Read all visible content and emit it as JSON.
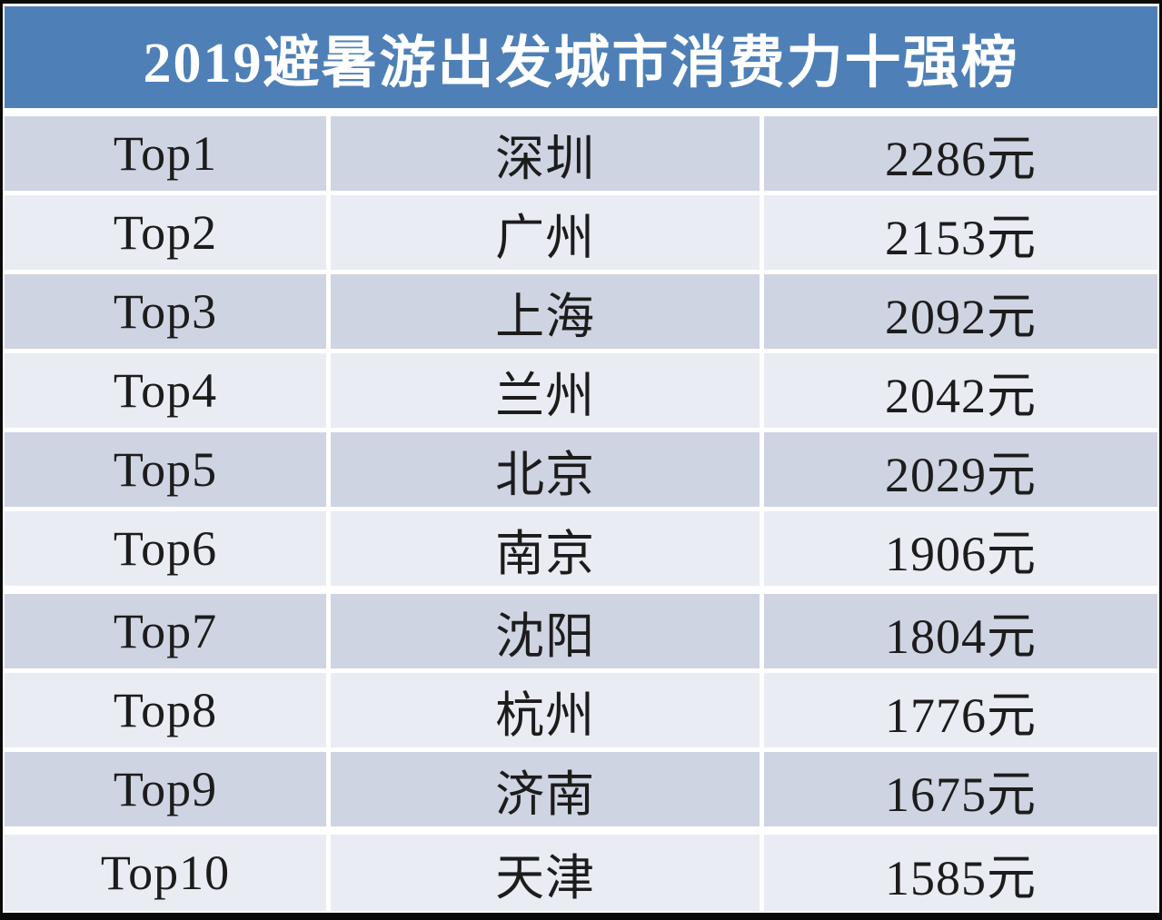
{
  "title": "2019避暑游出发城市消费力十强榜",
  "colors": {
    "frame": "#0a0a0a",
    "header_bg": "#4e80b7",
    "title_text": "#ffffff",
    "row_dark": "#cfd4e2",
    "row_light": "#e9ecf3",
    "text": "#1c1c1c"
  },
  "chart_data": {
    "type": "table",
    "title": "2019避暑游出发城市消费力十强榜",
    "unit": "元",
    "rows": [
      {
        "rank": "Top1",
        "city": "深圳",
        "amount": 2286,
        "amount_display": "2286元"
      },
      {
        "rank": "Top2",
        "city": "广州",
        "amount": 2153,
        "amount_display": "2153元"
      },
      {
        "rank": "Top3",
        "city": "上海",
        "amount": 2092,
        "amount_display": "2092元"
      },
      {
        "rank": "Top4",
        "city": "兰州",
        "amount": 2042,
        "amount_display": "2042元"
      },
      {
        "rank": "Top5",
        "city": "北京",
        "amount": 2029,
        "amount_display": "2029元"
      },
      {
        "rank": "Top6",
        "city": "南京",
        "amount": 1906,
        "amount_display": "1906元"
      },
      {
        "rank": "Top7",
        "city": "沈阳",
        "amount": 1804,
        "amount_display": "1804元"
      },
      {
        "rank": "Top8",
        "city": "杭州",
        "amount": 1776,
        "amount_display": "1776元"
      },
      {
        "rank": "Top9",
        "city": "济南",
        "amount": 1675,
        "amount_display": "1675元"
      },
      {
        "rank": "Top10",
        "city": "天津",
        "amount": 1585,
        "amount_display": "1585元"
      }
    ]
  }
}
